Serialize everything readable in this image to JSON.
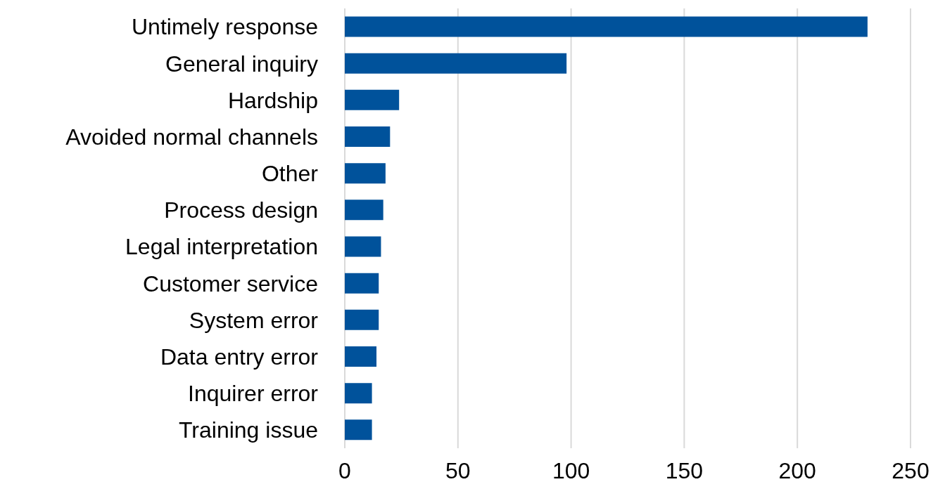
{
  "chart_data": {
    "type": "bar",
    "orientation": "horizontal",
    "categories": [
      "Untimely response",
      "General inquiry",
      "Hardship",
      "Avoided normal channels",
      "Other",
      "Process design",
      "Legal interpretation",
      "Customer service",
      "System error",
      "Data entry error",
      "Inquirer error",
      "Training issue"
    ],
    "values": [
      231,
      98,
      24,
      20,
      18,
      17,
      16,
      15,
      15,
      14,
      12,
      12
    ],
    "color": "#00529b",
    "xlim": [
      0,
      250
    ],
    "xticks": [
      0,
      50,
      100,
      150,
      200,
      250
    ],
    "grid": "x"
  }
}
